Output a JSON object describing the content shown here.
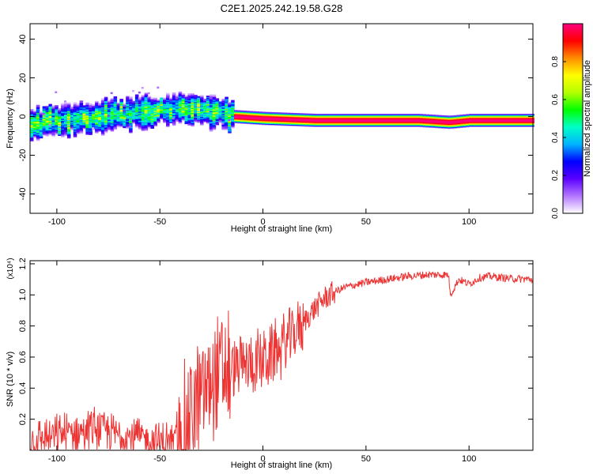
{
  "page": {
    "title": "C2E1.2025.242.19.58.G28"
  },
  "chart_data": [
    {
      "type": "heatmap",
      "xlabel": "Height of straight line (km)",
      "ylabel": "Frequency (Hz)",
      "xlim": [
        -113,
        131
      ],
      "ylim": [
        -50,
        48
      ],
      "x_ticks": [
        -100,
        -50,
        0,
        50,
        100
      ],
      "y_ticks": [
        -40,
        -20,
        0,
        20,
        40
      ],
      "colorbar": {
        "label": "Normalized spectral amplitude",
        "range": [
          0,
          1
        ],
        "ticks": [
          0.0,
          0.2,
          0.4,
          0.6,
          0.8
        ],
        "tick_labels": [
          "0.0",
          "0.2",
          "0.4",
          "0.6",
          "0.8"
        ],
        "colors": [
          "#ffffff",
          "#b377ff",
          "#5a00ff",
          "#0000ff",
          "#00b3ff",
          "#00ffc8",
          "#00ff00",
          "#b4ff00",
          "#ffff00",
          "#ff8c00",
          "#ff0000",
          "#ff0080"
        ]
      },
      "ridge": {
        "x": [
          -113,
          -100,
          -90,
          -80,
          -70,
          -60,
          -50,
          -40,
          -32,
          -25,
          -15,
          0,
          25,
          50,
          75,
          90,
          100,
          131
        ],
        "y": [
          -4,
          -2,
          -1,
          0,
          1,
          2,
          3,
          5,
          3,
          2,
          0,
          -1,
          -2,
          -2,
          -2,
          -3,
          -2,
          -2
        ]
      }
    },
    {
      "type": "line",
      "xlabel": "Height of straight line (km)",
      "ylabel": "SNR (10 * v/v)",
      "y_multiplier": "(x10⁴)",
      "xlim": [
        -113,
        131
      ],
      "ylim": [
        0,
        12200
      ],
      "x_ticks": [
        -100,
        -50,
        0,
        50,
        100
      ],
      "y_ticks": [
        2000,
        4000,
        6000,
        8000,
        10000,
        12000
      ],
      "y_tick_labels": [
        "0.2",
        "0.4",
        "0.6",
        "0.8",
        "1.0",
        "1.2"
      ],
      "series": [
        {
          "color": "#ee3333",
          "x": [
            -113,
            -105,
            -100,
            -95,
            -90,
            -85,
            -80,
            -75,
            -70,
            -65,
            -60,
            -55,
            -50,
            -45,
            -40,
            -37,
            -35,
            -32,
            -30,
            -27,
            -25,
            -22,
            -20,
            -15,
            -10,
            -5,
            0,
            5,
            10,
            15,
            20,
            25,
            30,
            35,
            40,
            50,
            60,
            70,
            80,
            90,
            91,
            95,
            100,
            105,
            110,
            120,
            131
          ],
          "y": [
            600,
            800,
            900,
            1100,
            1200,
            1300,
            1500,
            1200,
            1000,
            900,
            800,
            700,
            600,
            500,
            800,
            1500,
            2500,
            3000,
            3500,
            4000,
            4500,
            4700,
            5000,
            5200,
            5400,
            5600,
            5800,
            6200,
            6800,
            7500,
            8300,
            9100,
            9800,
            10200,
            10500,
            10800,
            11000,
            11200,
            11300,
            11300,
            10000,
            11000,
            10700,
            11100,
            11200,
            11050,
            11000
          ]
        }
      ]
    }
  ]
}
